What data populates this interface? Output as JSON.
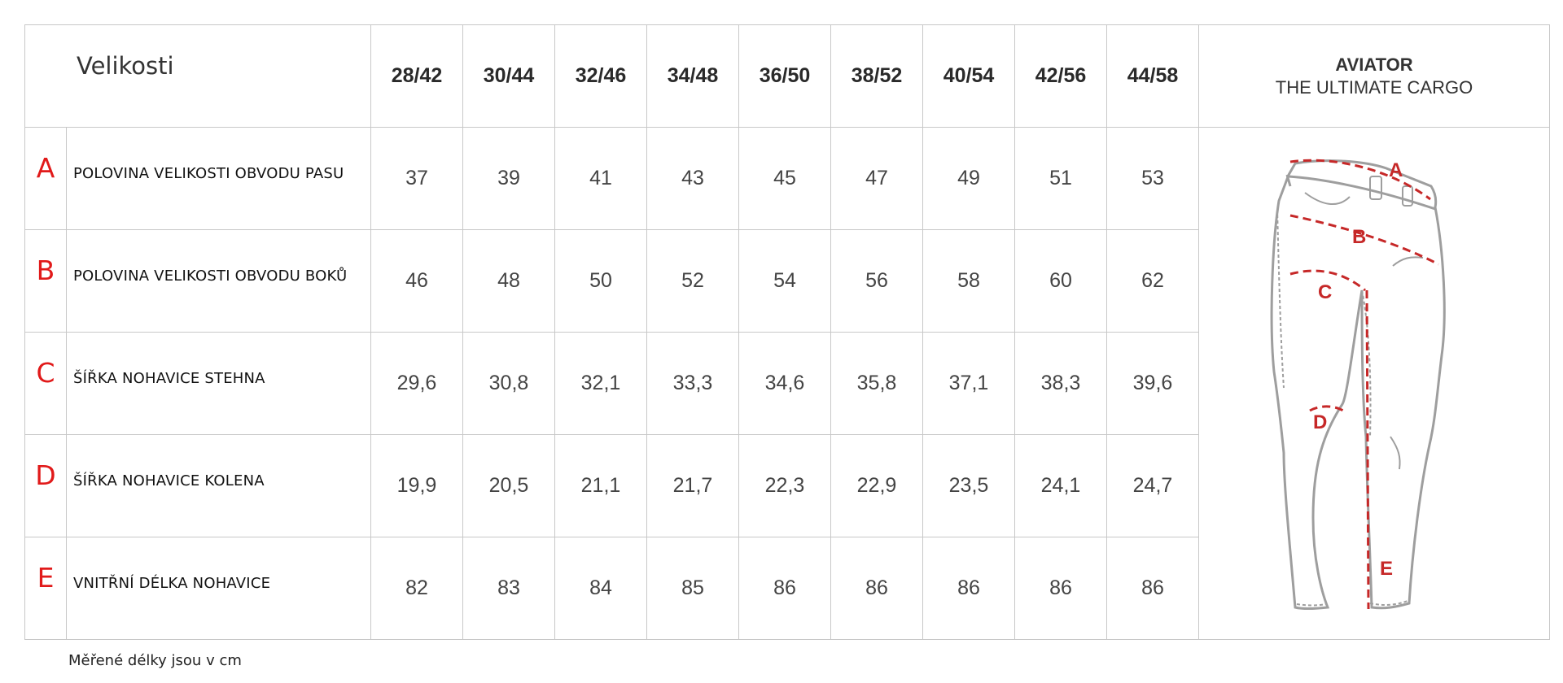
{
  "header": {
    "title": "Velikosti",
    "sizes": [
      "28/42",
      "30/44",
      "32/46",
      "34/48",
      "36/50",
      "38/52",
      "40/54",
      "42/56",
      "44/58"
    ],
    "brand": {
      "name": "AVIATOR",
      "subtitle": "THE ULTIMATE CARGO"
    }
  },
  "rows": [
    {
      "letter": "A",
      "label": "POLOVINA VELIKOSTI OBVODU PASU",
      "values": [
        "37",
        "39",
        "41",
        "43",
        "45",
        "47",
        "49",
        "51",
        "53"
      ]
    },
    {
      "letter": "B",
      "label": "POLOVINA VELIKOSTI OBVODU BOKŮ",
      "values": [
        "46",
        "48",
        "50",
        "52",
        "54",
        "56",
        "58",
        "60",
        "62"
      ]
    },
    {
      "letter": "C",
      "label": " ŠÍŘKA NOHAVICE STEHNA",
      "values": [
        "29,6",
        "30,8",
        "32,1",
        "33,3",
        "34,6",
        "35,8",
        "37,1",
        "38,3",
        "39,6"
      ]
    },
    {
      "letter": "D",
      "label": " ŠÍŘKA NOHAVICE KOLENA",
      "values": [
        "19,9",
        "20,5",
        "21,1",
        "21,7",
        "22,3",
        "22,9",
        "23,5",
        "24,1",
        "24,7"
      ]
    },
    {
      "letter": "E",
      "label": "VNITŘNÍ DÉLKA NOHAVICE",
      "values": [
        "82",
        "83",
        "84",
        "85",
        "86",
        "86",
        "86",
        "86",
        "86"
      ]
    }
  ],
  "diagram": {
    "markers": [
      "A",
      "B",
      "C",
      "D",
      "E"
    ],
    "line_color": "#c62828",
    "outline_color": "#9e9e9e"
  },
  "footnote": "Měřené délky jsou v cm",
  "colors": {
    "letter": "#e11a1a",
    "grid": "#c8c8c8"
  }
}
